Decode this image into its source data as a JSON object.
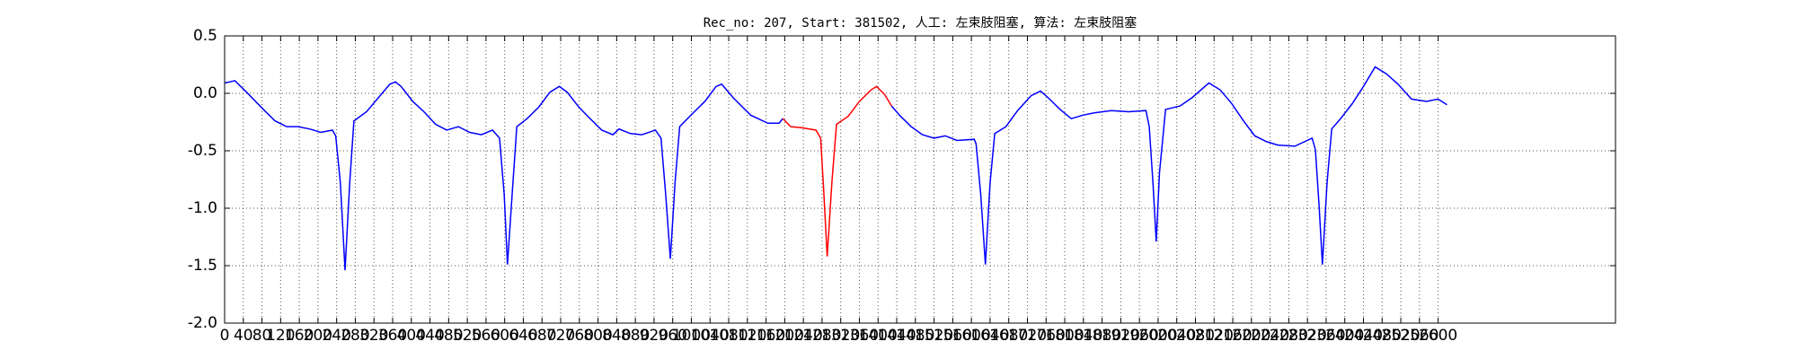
{
  "chart_data": {
    "type": "line",
    "title": "Rec_no: 207, Start: 381502, 人工: 左束肢阻塞, 算法: 左束肢阻塞",
    "grid": true,
    "xlim": [
      0,
      2980
    ],
    "ylim": [
      -2.0,
      0.5
    ],
    "xticks": [
      0,
      40,
      80,
      120,
      160,
      200,
      240,
      280,
      320,
      360,
      400,
      440,
      480,
      520,
      560,
      600,
      640,
      680,
      720,
      760,
      800,
      840,
      880,
      920,
      960,
      1000,
      1040,
      1080,
      1120,
      1160,
      1200,
      1240,
      1280,
      1320,
      1360,
      1400,
      1440,
      1480,
      1520,
      1560,
      1600,
      1640,
      1680,
      1720,
      1760,
      1800,
      1840,
      1880,
      1920,
      1960,
      2000,
      2040,
      2080,
      2120,
      2160,
      2200,
      2240,
      2280,
      2320,
      2360,
      2400,
      2440,
      2480,
      2520,
      2560,
      2600
    ],
    "yticks": [
      {
        "value": 0.5,
        "label": "0.5"
      },
      {
        "value": 0,
        "label": "0.0"
      },
      {
        "value": -0.5,
        "label": "-0.5"
      },
      {
        "value": -1,
        "label": "-1.0"
      },
      {
        "value": -1.5,
        "label": "-1.5"
      },
      {
        "value": -2,
        "label": "-2.0"
      }
    ],
    "series": [
      {
        "color": "#0000ff",
        "x": [
          0,
          22,
          47,
          83,
          108,
          133,
          157,
          182,
          206,
          231,
          238,
          248,
          258,
          268,
          277,
          304,
          329,
          354,
          366,
          378,
          403,
          427,
          452,
          476,
          501,
          525,
          550,
          574,
          589,
          599,
          606,
          616,
          626,
          648,
          673,
          697,
          717,
          734,
          759,
          783,
          808,
          832,
          845,
          869,
          894,
          923,
          935,
          945,
          955,
          965,
          975,
          1004,
          1029,
          1053,
          1065,
          1090,
          1127,
          1164,
          1188,
          1196
        ],
        "values": [
          0.09,
          0.11,
          0.01,
          -0.14,
          -0.24,
          -0.29,
          -0.29,
          -0.31,
          -0.34,
          -0.32,
          -0.37,
          -0.78,
          -1.54,
          -0.78,
          -0.24,
          -0.16,
          -0.04,
          0.08,
          0.1,
          0.06,
          -0.07,
          -0.16,
          -0.27,
          -0.32,
          -0.29,
          -0.34,
          -0.36,
          -0.32,
          -0.39,
          -0.88,
          -1.49,
          -0.88,
          -0.29,
          -0.22,
          -0.12,
          0.01,
          0.06,
          0.01,
          -0.12,
          -0.22,
          -0.32,
          -0.36,
          -0.31,
          -0.35,
          -0.36,
          -0.32,
          -0.39,
          -0.88,
          -1.44,
          -0.78,
          -0.29,
          -0.17,
          -0.07,
          0.06,
          0.08,
          -0.04,
          -0.19,
          -0.26,
          -0.26,
          -0.22
        ]
      },
      {
        "color": "#ff0000",
        "x": [
          1196,
          1213,
          1237,
          1267,
          1277,
          1284,
          1291,
          1301,
          1311,
          1336,
          1360,
          1385,
          1397,
          1414,
          1429
        ],
        "values": [
          -0.22,
          -0.29,
          -0.3,
          -0.32,
          -0.39,
          -0.88,
          -1.42,
          -0.78,
          -0.27,
          -0.2,
          -0.07,
          0.03,
          0.06,
          -0.01,
          -0.11
        ]
      },
      {
        "color": "#0000ff",
        "x": [
          1429,
          1446,
          1471,
          1495,
          1520,
          1544,
          1569,
          1606,
          1610,
          1620,
          1630,
          1640,
          1650,
          1674,
          1699,
          1728,
          1748,
          1765,
          1790,
          1814,
          1839,
          1863,
          1900,
          1937,
          1974,
          1981,
          1989,
          1996,
          2003,
          2016,
          2047,
          2072,
          2109,
          2133,
          2158,
          2183,
          2207,
          2232,
          2256,
          2293,
          2330,
          2337,
          2345,
          2352,
          2362,
          2372,
          2391,
          2416,
          2440,
          2465,
          2489,
          2514,
          2543,
          2575,
          2600,
          2619
        ],
        "values": [
          -0.11,
          -0.19,
          -0.29,
          -0.36,
          -0.39,
          -0.37,
          -0.41,
          -0.4,
          -0.44,
          -0.88,
          -1.49,
          -0.78,
          -0.35,
          -0.29,
          -0.15,
          -0.02,
          0.02,
          -0.04,
          -0.14,
          -0.22,
          -0.19,
          -0.17,
          -0.15,
          -0.16,
          -0.15,
          -0.29,
          -0.78,
          -1.29,
          -0.69,
          -0.14,
          -0.11,
          -0.04,
          0.09,
          0.03,
          -0.09,
          -0.24,
          -0.37,
          -0.42,
          -0.45,
          -0.46,
          -0.39,
          -0.49,
          -0.98,
          -1.49,
          -0.78,
          -0.31,
          -0.22,
          -0.09,
          0.06,
          0.23,
          0.17,
          0.08,
          -0.05,
          -0.07,
          -0.05,
          -0.1
        ]
      }
    ]
  }
}
